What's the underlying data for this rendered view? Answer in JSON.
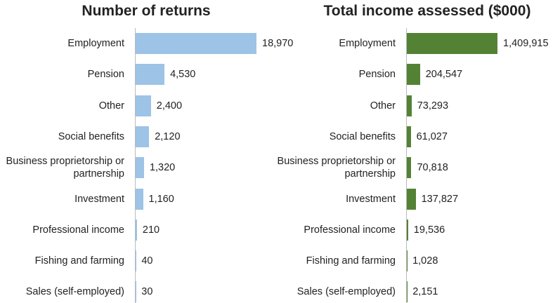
{
  "chart_data": [
    {
      "type": "bar",
      "orientation": "horizontal",
      "title": "Number of returns",
      "color": "#9dc3e6",
      "categories": [
        "Employment",
        "Pension",
        "Other",
        "Social benefits",
        "Business proprietorship or partnership",
        "Investment",
        "Professional income",
        "Fishing and farming",
        "Sales (self-employed)"
      ],
      "values": [
        18970,
        4530,
        2400,
        2120,
        1320,
        1160,
        210,
        40,
        30
      ],
      "value_labels": [
        "18,970",
        "4,530",
        "2,400",
        "2,120",
        "1,320",
        "1,160",
        "210",
        "40",
        "30"
      ]
    },
    {
      "type": "bar",
      "orientation": "horizontal",
      "title": "Total income assessed ($000)",
      "color": "#548235",
      "categories": [
        "Employment",
        "Pension",
        "Other",
        "Social benefits",
        "Business proprietorship or partnership",
        "Investment",
        "Professional income",
        "Fishing and farming",
        "Sales (self-employed)"
      ],
      "values": [
        1409915,
        204547,
        73293,
        61027,
        70818,
        137827,
        19536,
        1028,
        2151
      ],
      "value_labels": [
        "1,409,915",
        "204,547",
        "73,293",
        "61,027",
        "70,818",
        "137,827",
        "19,536",
        "1,028",
        "2,151"
      ]
    }
  ]
}
